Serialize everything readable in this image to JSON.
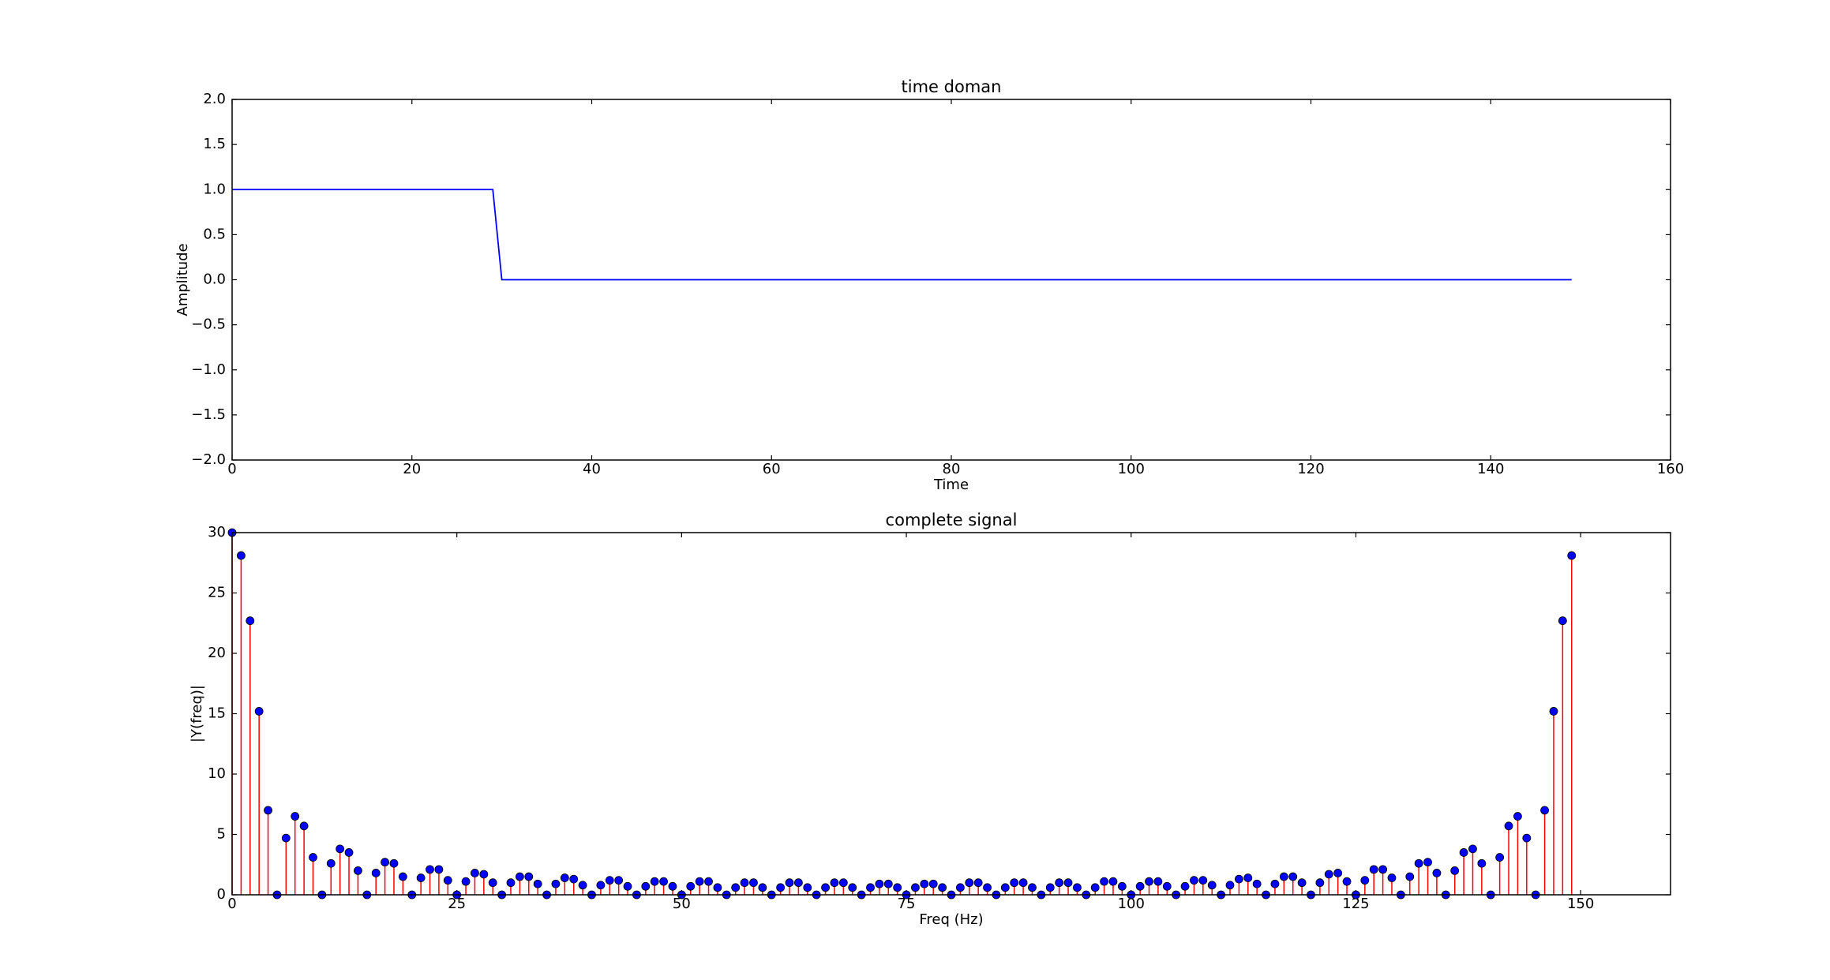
{
  "chart_data": [
    {
      "type": "line",
      "title": "time doman",
      "xlabel": "Time",
      "ylabel": "Amplitude",
      "x": [
        0,
        1,
        2,
        3,
        4,
        5,
        6,
        7,
        8,
        9,
        10,
        11,
        12,
        13,
        14,
        15,
        16,
        17,
        18,
        19,
        20,
        21,
        22,
        23,
        24,
        25,
        26,
        27,
        28,
        29,
        30,
        31,
        32,
        33,
        34,
        35,
        36,
        37,
        38,
        39,
        40,
        41,
        42,
        43,
        44,
        45,
        46,
        47,
        48,
        49,
        50,
        51,
        52,
        53,
        54,
        55,
        56,
        57,
        58,
        59,
        60,
        61,
        62,
        63,
        64,
        65,
        66,
        67,
        68,
        69,
        70,
        71,
        72,
        73,
        74,
        75,
        76,
        77,
        78,
        79,
        80,
        81,
        82,
        83,
        84,
        85,
        86,
        87,
        88,
        89,
        90,
        91,
        92,
        93,
        94,
        95,
        96,
        97,
        98,
        99,
        100,
        101,
        102,
        103,
        104,
        105,
        106,
        107,
        108,
        109,
        110,
        111,
        112,
        113,
        114,
        115,
        116,
        117,
        118,
        119,
        120,
        121,
        122,
        123,
        124,
        125,
        126,
        127,
        128,
        129,
        130,
        131,
        132,
        133,
        134,
        135,
        136,
        137,
        138,
        139,
        140,
        141,
        142,
        143,
        144,
        145,
        146,
        147,
        148,
        149
      ],
      "values": [
        1,
        1,
        1,
        1,
        1,
        1,
        1,
        1,
        1,
        1,
        1,
        1,
        1,
        1,
        1,
        1,
        1,
        1,
        1,
        1,
        1,
        1,
        1,
        1,
        1,
        1,
        1,
        1,
        1,
        1,
        0,
        0,
        0,
        0,
        0,
        0,
        0,
        0,
        0,
        0,
        0,
        0,
        0,
        0,
        0,
        0,
        0,
        0,
        0,
        0,
        0,
        0,
        0,
        0,
        0,
        0,
        0,
        0,
        0,
        0,
        0,
        0,
        0,
        0,
        0,
        0,
        0,
        0,
        0,
        0,
        0,
        0,
        0,
        0,
        0,
        0,
        0,
        0,
        0,
        0,
        0,
        0,
        0,
        0,
        0,
        0,
        0,
        0,
        0,
        0,
        0,
        0,
        0,
        0,
        0,
        0,
        0,
        0,
        0,
        0,
        0,
        0,
        0,
        0,
        0,
        0,
        0,
        0,
        0,
        0,
        0,
        0,
        0,
        0,
        0,
        0,
        0,
        0,
        0,
        0,
        0,
        0,
        0,
        0,
        0,
        0,
        0,
        0,
        0,
        0,
        0,
        0,
        0,
        0,
        0,
        0,
        0,
        0,
        0,
        0,
        0,
        0,
        0,
        0,
        0,
        0,
        0,
        0,
        0,
        0
      ],
      "color": "#0000ff",
      "xlim": [
        0,
        160
      ],
      "xticks": [
        0,
        20,
        40,
        60,
        80,
        100,
        120,
        140,
        160
      ],
      "ylim": [
        -2,
        2
      ],
      "yticks": [
        {
          "value": -2,
          "label": "−2.0"
        },
        {
          "value": -1.5,
          "label": "−1.5"
        },
        {
          "value": -1,
          "label": "−1.0"
        },
        {
          "value": -0.5,
          "label": "−0.5"
        },
        {
          "value": 0,
          "label": "0.0"
        },
        {
          "value": 0.5,
          "label": "0.5"
        },
        {
          "value": 1,
          "label": "1.0"
        },
        {
          "value": 1.5,
          "label": "1.5"
        },
        {
          "value": 2,
          "label": "2.0"
        }
      ]
    },
    {
      "type": "stem",
      "title": "complete signal",
      "xlabel": "Freq (Hz)",
      "ylabel": "|Y(freq)|",
      "x": [
        0,
        1,
        2,
        3,
        4,
        5,
        6,
        7,
        8,
        9,
        10,
        11,
        12,
        13,
        14,
        15,
        16,
        17,
        18,
        19,
        20,
        21,
        22,
        23,
        24,
        25,
        26,
        27,
        28,
        29,
        30,
        31,
        32,
        33,
        34,
        35,
        36,
        37,
        38,
        39,
        40,
        41,
        42,
        43,
        44,
        45,
        46,
        47,
        48,
        49,
        50,
        51,
        52,
        53,
        54,
        55,
        56,
        57,
        58,
        59,
        60,
        61,
        62,
        63,
        64,
        65,
        66,
        67,
        68,
        69,
        70,
        71,
        72,
        73,
        74,
        75,
        76,
        77,
        78,
        79,
        80,
        81,
        82,
        83,
        84,
        85,
        86,
        87,
        88,
        89,
        90,
        91,
        92,
        93,
        94,
        95,
        96,
        97,
        98,
        99,
        100,
        101,
        102,
        103,
        104,
        105,
        106,
        107,
        108,
        109,
        110,
        111,
        112,
        113,
        114,
        115,
        116,
        117,
        118,
        119,
        120,
        121,
        122,
        123,
        124,
        125,
        126,
        127,
        128,
        129,
        130,
        131,
        132,
        133,
        134,
        135,
        136,
        137,
        138,
        139,
        140,
        141,
        142,
        143,
        144,
        145,
        146,
        147,
        148,
        149
      ],
      "values": [
        30,
        28.1,
        22.7,
        15.2,
        7.0,
        0,
        4.7,
        6.5,
        5.7,
        3.1,
        0,
        2.6,
        3.8,
        3.5,
        2.0,
        0,
        1.8,
        2.7,
        2.6,
        1.5,
        0,
        1.4,
        2.1,
        2.1,
        1.2,
        0,
        1.1,
        1.8,
        1.7,
        1.0,
        0,
        1.0,
        1.5,
        1.5,
        0.9,
        0,
        0.9,
        1.4,
        1.3,
        0.8,
        0,
        0.8,
        1.2,
        1.2,
        0.7,
        0,
        0.7,
        1.1,
        1.1,
        0.7,
        0,
        0.7,
        1.1,
        1.1,
        0.6,
        0,
        0.6,
        1.0,
        1.0,
        0.6,
        0,
        0.6,
        1.0,
        1.0,
        0.6,
        0,
        0.6,
        1.0,
        1.0,
        0.6,
        0,
        0.6,
        0.9,
        0.9,
        0.6,
        0,
        0.6,
        0.9,
        0.9,
        0.6,
        0,
        0.6,
        1.0,
        1.0,
        0.6,
        0,
        0.6,
        1.0,
        1.0,
        0.6,
        0,
        0.6,
        1.0,
        1.0,
        0.6,
        0,
        0.6,
        1.1,
        1.1,
        0.7,
        0,
        0.7,
        1.1,
        1.1,
        0.7,
        0,
        0.7,
        1.2,
        1.2,
        0.8,
        0,
        0.8,
        1.3,
        1.4,
        0.9,
        0,
        0.9,
        1.5,
        1.5,
        1.0,
        0,
        1.0,
        1.7,
        1.8,
        1.1,
        0,
        1.2,
        2.1,
        2.1,
        1.4,
        0,
        1.5,
        2.6,
        2.7,
        1.8,
        0,
        2.0,
        3.5,
        3.8,
        2.6,
        0,
        3.1,
        5.7,
        6.5,
        4.7,
        0,
        7.0,
        15.2,
        22.7,
        28.1
      ],
      "color": "#ff0000",
      "marker_color": "#0000ff",
      "xlim": [
        0,
        160
      ],
      "xticks": [
        0,
        25,
        50,
        75,
        100,
        125,
        150
      ],
      "ylim": [
        0,
        30
      ],
      "yticks": [
        0,
        5,
        10,
        15,
        20,
        25,
        30
      ]
    }
  ]
}
